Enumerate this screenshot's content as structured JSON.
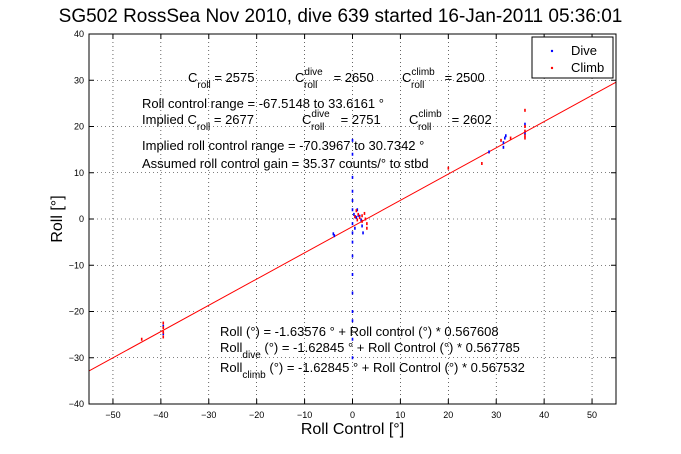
{
  "title": "SG502 RossSea Nov 2010, dive 639 started 16-Jan-2011 05:36:01",
  "chart_data": {
    "type": "scatter",
    "title": "SG502 RossSea Nov 2010, dive 639 started 16-Jan-2011 05:36:01",
    "xlabel": "Roll Control [°]",
    "ylabel": "Roll [°]",
    "xlim": [
      -55,
      55
    ],
    "ylim": [
      -40,
      40
    ],
    "xticks": [
      -50,
      -40,
      -30,
      -20,
      -10,
      0,
      10,
      20,
      30,
      40,
      50
    ],
    "yticks": [
      -40,
      -30,
      -20,
      -10,
      0,
      10,
      20,
      30,
      40
    ],
    "grid": true,
    "legend_position": "top-right",
    "legend": [
      {
        "label": "Dive",
        "color": "#0000ff"
      },
      {
        "label": "Climb",
        "color": "#ff0000"
      }
    ],
    "series": [
      {
        "name": "Dive",
        "color": "#0000ff",
        "points": [
          [
            -39.5,
            -23.2
          ],
          [
            -39.5,
            -24.8
          ],
          [
            -4,
            -3.2
          ],
          [
            -3.8,
            -3.6
          ],
          [
            0,
            -1
          ],
          [
            0,
            -3
          ],
          [
            0,
            -5
          ],
          [
            0,
            -8
          ],
          [
            0,
            -12
          ],
          [
            0,
            -16
          ],
          [
            0,
            -20
          ],
          [
            0,
            -22
          ],
          [
            0,
            -26
          ],
          [
            0,
            -30
          ],
          [
            0.3,
            1
          ],
          [
            0.6,
            0.5
          ],
          [
            1.2,
            0.8
          ],
          [
            1.8,
            -0.2
          ],
          [
            2,
            -1.5
          ],
          [
            2.2,
            -3
          ],
          [
            1,
            2
          ],
          [
            0.5,
            -2
          ],
          [
            0,
            2
          ],
          [
            0,
            4
          ],
          [
            0,
            6
          ],
          [
            0,
            9
          ],
          [
            0,
            14
          ],
          [
            0,
            17
          ],
          [
            0.8,
            0.3
          ],
          [
            1.5,
            0.6
          ],
          [
            28.5,
            14.5
          ],
          [
            31.5,
            15.5
          ],
          [
            31.5,
            16.5
          ],
          [
            31.8,
            17.5
          ],
          [
            32,
            18
          ],
          [
            36,
            18.5
          ],
          [
            36,
            20.5
          ]
        ]
      },
      {
        "name": "Climb",
        "color": "#ff0000",
        "points": [
          [
            -39.5,
            -22.5
          ],
          [
            -39.5,
            -23.5
          ],
          [
            -39.5,
            -24.5
          ],
          [
            -39.5,
            -25.5
          ],
          [
            -44,
            -26
          ],
          [
            0.5,
            0.5
          ],
          [
            1,
            -0.2
          ],
          [
            1.2,
            1
          ],
          [
            1.5,
            0.3
          ],
          [
            2,
            0.7
          ],
          [
            2,
            -0.5
          ],
          [
            2.5,
            1.2
          ],
          [
            2.7,
            0
          ],
          [
            3,
            -1
          ],
          [
            3,
            -2
          ],
          [
            0.8,
            1.8
          ],
          [
            31,
            17
          ],
          [
            33,
            17.5
          ],
          [
            36,
            17.5
          ],
          [
            36,
            18
          ],
          [
            36,
            19
          ],
          [
            36,
            20
          ],
          [
            36,
            23.5
          ],
          [
            27,
            12
          ],
          [
            20,
            11
          ]
        ]
      }
    ],
    "fit_line": {
      "intercept": -1.63576,
      "slope": 0.567608,
      "color": "#ff0000"
    }
  },
  "annotations": {
    "c_line": {
      "a_base": "C",
      "a_sub": "roll",
      "a_val": " = 2575",
      "b_base": "C",
      "b_sup": "dive",
      "b_sub": "roll",
      "b_val": " = 2650",
      "c_base": "C",
      "c_sup": "climb",
      "c_sub": "roll",
      "c_val": " = 2500"
    },
    "range": "Roll control range = -67.5148 to 33.6161 °",
    "implied_c": {
      "prefix": "Implied C",
      "a_sub": "roll",
      "a_val": " = 2677",
      "b_base": "C",
      "b_sup": "dive",
      "b_sub": "roll",
      "b_val": " = 2751",
      "c_base": "C",
      "c_sup": "climb",
      "c_sub": "roll",
      "c_val": " = 2602"
    },
    "implied_range": "Implied roll control range = -70.3967 to 30.7342 °",
    "gain": "Assumed roll control gain = 35.37 counts/° to stbd",
    "fit_all": "Roll (°) = -1.63576 ° + Roll control (°) * 0.567608",
    "fit_dive": {
      "base": "Roll",
      "sub": "dive",
      "rest": " (°) = -1.62845 ° + Roll Control (°) * 0.567785"
    },
    "fit_climb": {
      "base": "Roll",
      "sub": "climb",
      "rest": " (°) = -1.62845 ° + Roll Control (°) * 0.567532"
    }
  }
}
